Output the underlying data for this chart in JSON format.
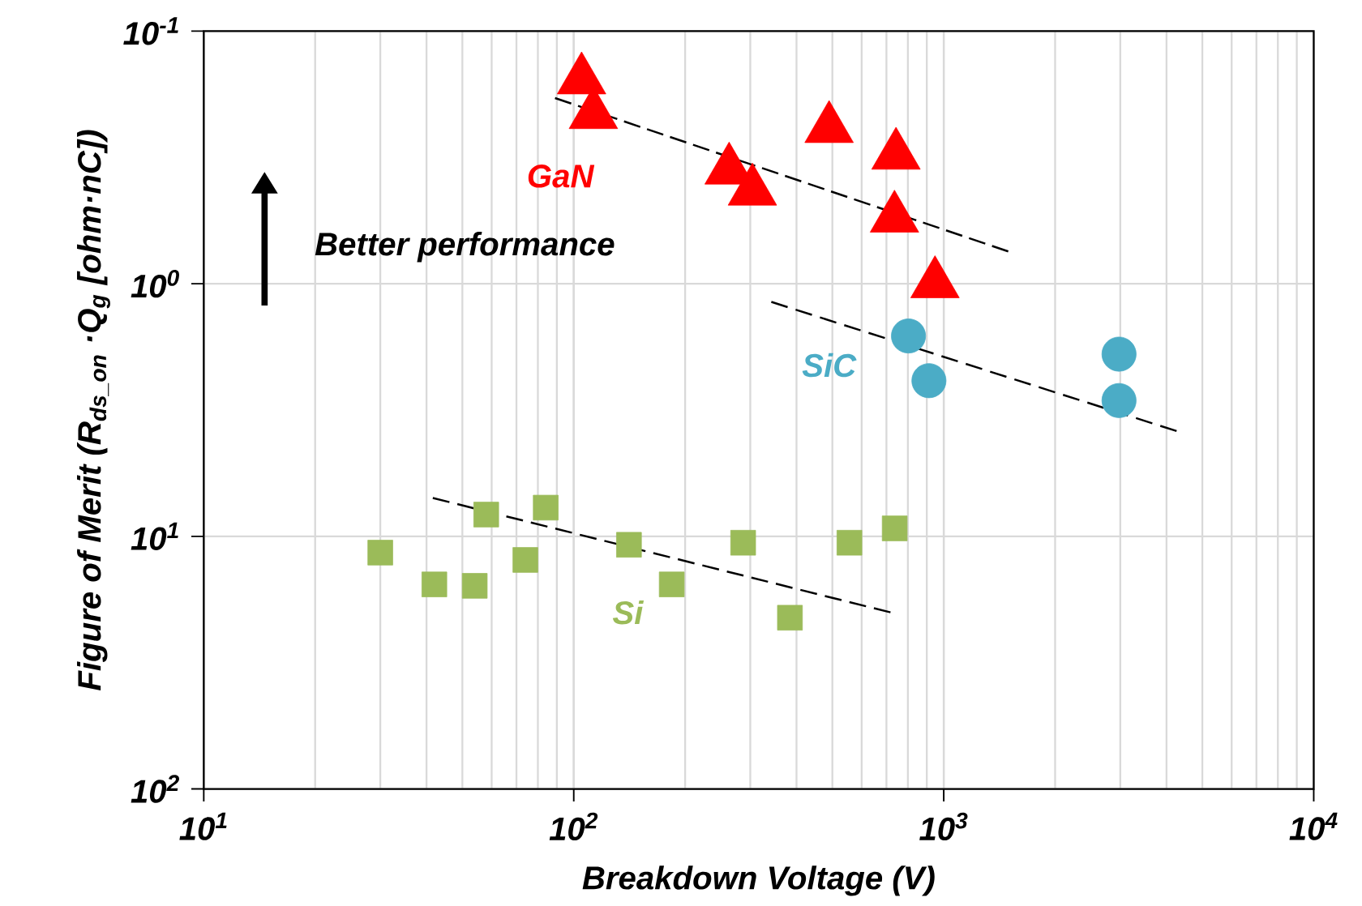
{
  "chart_data": {
    "type": "scatter",
    "xlabel": "Breakdown Voltage (V)",
    "ylabel": "Figure of Merit (R$_{ds_on}$ ·Q$_{g}$ [ohm·nC])",
    "log": "xy",
    "grid": true,
    "xlim": [
      10,
      10000
    ],
    "ylim": [
      100,
      0.1
    ],
    "xticks": [
      {
        "value": 10,
        "label": "10$^{1}$"
      },
      {
        "value": 100,
        "label": "10$^{2}$"
      },
      {
        "value": 1000,
        "label": "10$^{3}$"
      },
      {
        "value": 10000,
        "label": "10$^{4}$"
      }
    ],
    "yticks": [
      {
        "value": 0.1,
        "label": "10$^{-1}$"
      },
      {
        "value": 1,
        "label": "10$^{0}$"
      },
      {
        "value": 10,
        "label": "10$^{1}$"
      },
      {
        "value": 100,
        "label": "10$^{2}$"
      }
    ],
    "annotations": [
      "Better performance"
    ],
    "series": [
      {
        "name": "GaN",
        "marker": "triangle",
        "color": "#ff0000",
        "x": [
          105,
          113,
          263,
          304,
          490,
          743,
          736,
          947
        ],
        "values": [
          0.156,
          0.214,
          0.355,
          0.43,
          0.243,
          0.31,
          0.55,
          1.0
        ]
      },
      {
        "name": "SiC",
        "marker": "circle",
        "color": "#4bacc6",
        "x": [
          803,
          912,
          2977,
          2977
        ],
        "values": [
          1.61,
          2.42,
          1.9,
          2.9
        ]
      },
      {
        "name": "Si",
        "marker": "square",
        "color": "#9bbb59",
        "x": [
          30,
          42,
          54,
          58,
          74,
          84,
          141,
          184,
          287,
          384,
          556,
          737
        ],
        "values": [
          11.6,
          15.5,
          15.7,
          8.2,
          12.4,
          7.7,
          10.8,
          15.5,
          10.6,
          21,
          10.6,
          9.3
        ]
      },
      {
        "type": "line",
        "line_style": "dashed",
        "color": "#000000",
        "x": [
          89,
          1494
        ],
        "values": [
          0.184,
          0.745
        ]
      },
      {
        "type": "line",
        "line_style": "dashed",
        "color": "#000000",
        "x": [
          342,
          4260
        ],
        "values": [
          1.18,
          3.83
        ]
      },
      {
        "type": "line",
        "line_style": "dashed",
        "color": "#000000",
        "x": [
          41.6,
          718
        ],
        "values": [
          7.05,
          20
        ]
      }
    ]
  }
}
